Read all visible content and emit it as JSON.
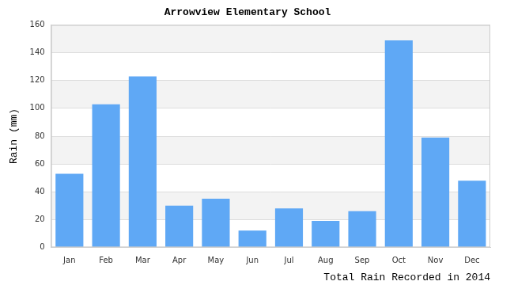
{
  "chart_data": {
    "type": "bar",
    "title": "Arrowview Elementary School",
    "x_label": "Total Rain Recorded in 2014",
    "y_label": "Rain (mm)",
    "categories": [
      "Jan",
      "Feb",
      "Mar",
      "Apr",
      "May",
      "Jun",
      "Jul",
      "Aug",
      "Sep",
      "Oct",
      "Nov",
      "Dec"
    ],
    "values": [
      53,
      103,
      123,
      30,
      35,
      12,
      28,
      19,
      26,
      149,
      79,
      48
    ],
    "color": "#5fa8f5",
    "ylim": [
      0,
      160
    ],
    "yticks": [
      0,
      20,
      40,
      60,
      80,
      100,
      120,
      140,
      160
    ],
    "grid": true
  }
}
